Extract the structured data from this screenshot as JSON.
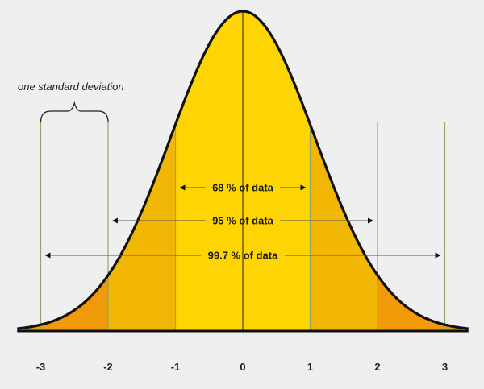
{
  "annotation": "one standard deviation",
  "x_ticks": [
    "-3",
    "-2",
    "-1",
    "0",
    "1",
    "2",
    "3"
  ],
  "bands": [
    {
      "label": "68 % of data",
      "range_sd": [
        -1,
        1
      ]
    },
    {
      "label": "95 % of data",
      "range_sd": [
        -2,
        2
      ]
    },
    {
      "label": "99.7 % of data",
      "range_sd": [
        -3,
        3
      ]
    }
  ],
  "colors": {
    "background": "#efefef",
    "center_fill": "#fed403",
    "middle_fill": "#f2b705",
    "tail_fill": "#ef9a06",
    "curve_stroke": "#111111",
    "grid_line": "#8fa86a",
    "arrow_line": "#555555"
  }
}
